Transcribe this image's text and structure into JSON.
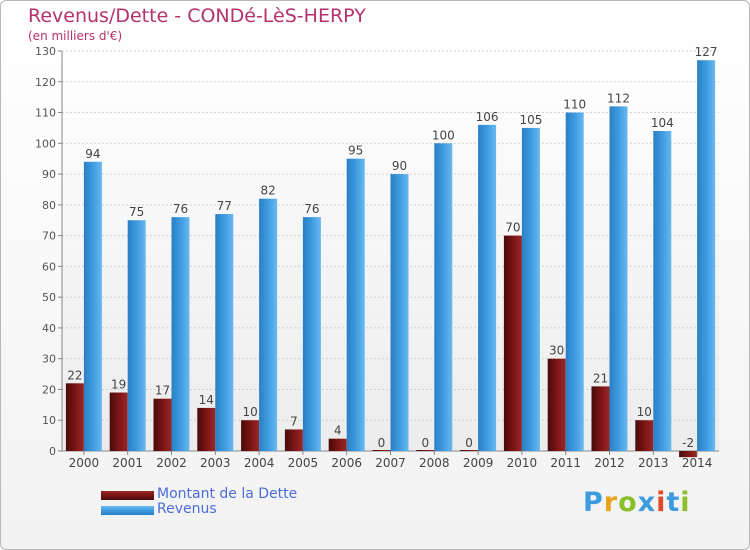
{
  "title": "Revenus/Dette - CONDé-LèS-HERPY",
  "subtitle": "(en milliers d'€)",
  "logo_text": "Proxiti",
  "colors": {
    "dette": "#7a1414",
    "revenus": "#3d9be0",
    "title": "#b5326e",
    "legend_text": "#4b6dd8"
  },
  "chart_data": {
    "type": "bar",
    "title": "Revenus/Dette - CONDé-LèS-HERPY",
    "subtitle": "(en milliers d'€)",
    "categories": [
      "2000",
      "2001",
      "2002",
      "2003",
      "2004",
      "2005",
      "2006",
      "2007",
      "2008",
      "2009",
      "2010",
      "2011",
      "2012",
      "2013",
      "2014"
    ],
    "series": [
      {
        "name": "Montant de la Dette",
        "values": [
          22,
          19,
          17,
          14,
          10,
          7,
          4,
          0,
          0,
          0,
          70,
          30,
          21,
          10,
          -2
        ],
        "labels": [
          "22",
          "19",
          "17",
          "14",
          "10",
          "7",
          "4",
          "0",
          "0",
          "0",
          "70",
          "30",
          "21",
          "10",
          "-2"
        ]
      },
      {
        "name": "Revenus",
        "values": [
          94,
          75,
          76,
          77,
          82,
          76,
          95,
          90,
          100,
          106,
          105,
          110,
          112,
          104,
          127
        ],
        "labels": [
          "94",
          "75",
          "76",
          "77",
          "82",
          "76",
          "95",
          "90",
          "100",
          "106",
          "105",
          "110",
          "112",
          "104",
          "127"
        ]
      }
    ],
    "ylim": [
      0,
      130
    ],
    "yticks": [
      0,
      10,
      20,
      30,
      40,
      50,
      60,
      70,
      80,
      90,
      100,
      110,
      120,
      130
    ],
    "grid": true,
    "legend": "bottom-left"
  }
}
